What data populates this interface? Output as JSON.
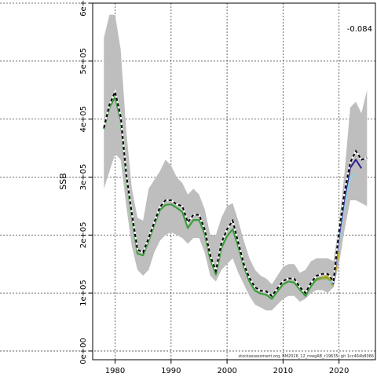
{
  "chart_data": {
    "type": "line",
    "title": "",
    "xlabel": "",
    "ylabel": "SSB",
    "corner_label": "-0.084",
    "footnote": "stockassessment.org, BM2026_12_mwgAB_r19635, git 1cc464b8066",
    "xlim": [
      1976,
      2026.5
    ],
    "ylim": [
      -15000,
      600000
    ],
    "grid": true,
    "x_ticks": [
      1980,
      1990,
      2000,
      2010,
      2020
    ],
    "x_tick_labels": [
      "1980",
      "1990",
      "2000",
      "2010",
      "2020"
    ],
    "y_ticks": [
      0,
      100000,
      200000,
      300000,
      400000,
      500000,
      600000
    ],
    "y_tick_labels": [
      "0e+00",
      "1e+05",
      "2e+05",
      "3e+05",
      "4e+05",
      "5e+05",
      "6e+05"
    ],
    "colors": {
      "band": "#bebebe",
      "main_dashed": "#000000",
      "main_dashed_under": "#ffffff",
      "peel_blue": "#2a1f8f",
      "peel_green": "#3a9e3a",
      "peel_yellow": "#c8a81a",
      "peel_lightblue": "#8fd1f0",
      "peel_olive": "#9aab3a"
    },
    "x": [
      1978,
      1979,
      1980,
      1981,
      1982,
      1983,
      1984,
      1985,
      1986,
      1987,
      1988,
      1989,
      1990,
      1991,
      1992,
      1993,
      1994,
      1995,
      1996,
      1997,
      1998,
      1999,
      2000,
      2001,
      2002,
      2003,
      2004,
      2005,
      2006,
      2007,
      2008,
      2009,
      2010,
      2011,
      2012,
      2013,
      2014,
      2015,
      2016,
      2017,
      2018,
      2019,
      2020,
      2021,
      2022,
      2023,
      2024,
      2025
    ],
    "band": {
      "upper": [
        540000,
        580000,
        580000,
        520000,
        380000,
        280000,
        230000,
        225000,
        280000,
        295000,
        310000,
        330000,
        320000,
        300000,
        290000,
        270000,
        280000,
        270000,
        245000,
        200000,
        200000,
        230000,
        250000,
        255000,
        225000,
        190000,
        160000,
        140000,
        130000,
        125000,
        115000,
        130000,
        145000,
        150000,
        150000,
        135000,
        140000,
        155000,
        160000,
        160000,
        160000,
        155000,
        220000,
        310000,
        420000,
        430000,
        410000,
        450000
      ],
      "lower": [
        280000,
        310000,
        340000,
        330000,
        250000,
        180000,
        140000,
        130000,
        140000,
        170000,
        190000,
        200000,
        205000,
        200000,
        195000,
        185000,
        195000,
        195000,
        170000,
        130000,
        120000,
        140000,
        150000,
        160000,
        135000,
        115000,
        95000,
        80000,
        75000,
        70000,
        70000,
        80000,
        90000,
        95000,
        95000,
        85000,
        90000,
        100000,
        105000,
        105000,
        100000,
        110000,
        150000,
        210000,
        260000,
        260000,
        255000,
        250000
      ]
    },
    "series": [
      {
        "role": "main",
        "values": [
          385000,
          425000,
          447000,
          405000,
          305000,
          237000,
          175000,
          170000,
          195000,
          222000,
          248000,
          260000,
          260000,
          253000,
          250000,
          222000,
          235000,
          235000,
          210000,
          165000,
          138000,
          187000,
          210000,
          225000,
          187000,
          150000,
          126000,
          110000,
          104000,
          103000,
          95000,
          108000,
          121000,
          125000,
          125000,
          110000,
          100000,
          118000,
          130000,
          133000,
          133000,
          120000,
          207000,
          275000,
          325000,
          345000,
          330000,
          333000
        ]
      },
      {
        "role": "peel_blue",
        "values": [
          null,
          null,
          null,
          null,
          null,
          null,
          null,
          null,
          null,
          null,
          null,
          null,
          null,
          null,
          null,
          null,
          null,
          null,
          null,
          null,
          null,
          null,
          null,
          null,
          null,
          null,
          null,
          null,
          null,
          null,
          null,
          null,
          null,
          null,
          null,
          null,
          null,
          null,
          null,
          null,
          null,
          115000,
          198000,
          265000,
          316000,
          330000,
          315000,
          null
        ]
      },
      {
        "role": "peel_lightblue",
        "values": [
          null,
          null,
          null,
          null,
          null,
          null,
          null,
          null,
          null,
          null,
          null,
          null,
          null,
          null,
          null,
          null,
          null,
          null,
          null,
          null,
          null,
          null,
          null,
          null,
          null,
          null,
          null,
          null,
          null,
          null,
          null,
          null,
          null,
          null,
          null,
          null,
          null,
          null,
          null,
          null,
          120000,
          118000,
          190000,
          252000,
          300000,
          305000,
          null,
          null
        ]
      },
      {
        "role": "peel_yellow",
        "values": [
          null,
          null,
          null,
          null,
          null,
          null,
          null,
          null,
          null,
          null,
          null,
          null,
          null,
          null,
          null,
          null,
          null,
          null,
          null,
          null,
          null,
          null,
          null,
          null,
          null,
          null,
          null,
          null,
          null,
          null,
          null,
          null,
          null,
          null,
          null,
          null,
          null,
          null,
          null,
          127000,
          130000,
          117000,
          172000,
          null,
          null,
          null,
          null,
          null
        ]
      },
      {
        "role": "peel_olive",
        "values": [
          null,
          null,
          null,
          null,
          null,
          null,
          null,
          null,
          null,
          null,
          null,
          null,
          null,
          null,
          null,
          null,
          null,
          null,
          null,
          null,
          null,
          null,
          null,
          null,
          null,
          null,
          null,
          null,
          null,
          null,
          null,
          null,
          null,
          null,
          null,
          null,
          null,
          null,
          122000,
          125000,
          125000,
          112000,
          null,
          null,
          null,
          null,
          null,
          null
        ]
      },
      {
        "role": "peel_green",
        "values": [
          383000,
          420000,
          438000,
          398000,
          300000,
          230000,
          168000,
          165000,
          190000,
          218000,
          243000,
          252000,
          253000,
          247000,
          240000,
          212000,
          226000,
          226000,
          202000,
          158000,
          132000,
          178000,
          198000,
          210000,
          180000,
          145000,
          120000,
          104000,
          99000,
          97000,
          90000,
          103000,
          115000,
          120000,
          118000,
          106000,
          95000,
          112000,
          124000,
          126000,
          126000,
          115000,
          null,
          null,
          null,
          null,
          null,
          null
        ]
      }
    ]
  }
}
